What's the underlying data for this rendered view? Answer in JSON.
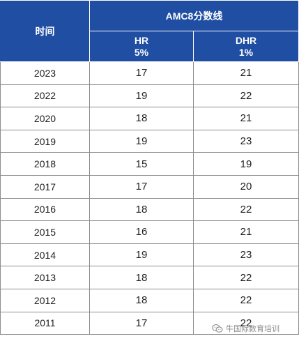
{
  "table": {
    "time_header": "时间",
    "group_header": "AMC8分数线",
    "columns": [
      {
        "name": "HR",
        "pct": "5%"
      },
      {
        "name": "DHR",
        "pct": "1%"
      }
    ],
    "rows": [
      {
        "year": "2023",
        "hr": "17",
        "dhr": "21"
      },
      {
        "year": "2022",
        "hr": "19",
        "dhr": "22"
      },
      {
        "year": "2020",
        "hr": "18",
        "dhr": "21"
      },
      {
        "year": "2019",
        "hr": "19",
        "dhr": "23"
      },
      {
        "year": "2018",
        "hr": "15",
        "dhr": "19"
      },
      {
        "year": "2017",
        "hr": "17",
        "dhr": "20"
      },
      {
        "year": "2016",
        "hr": "18",
        "dhr": "22"
      },
      {
        "year": "2015",
        "hr": "16",
        "dhr": "21"
      },
      {
        "year": "2014",
        "hr": "19",
        "dhr": "23"
      },
      {
        "year": "2013",
        "hr": "18",
        "dhr": "22"
      },
      {
        "year": "2012",
        "hr": "18",
        "dhr": "22"
      },
      {
        "year": "2011",
        "hr": "17",
        "dhr": "22"
      }
    ]
  },
  "watermark": {
    "text": "牛国际数育培训",
    "icon": "wechat-icon"
  },
  "colors": {
    "header_bg": "#1f4ea3",
    "header_text": "#ffffff",
    "grid": "#8c8c8c"
  }
}
